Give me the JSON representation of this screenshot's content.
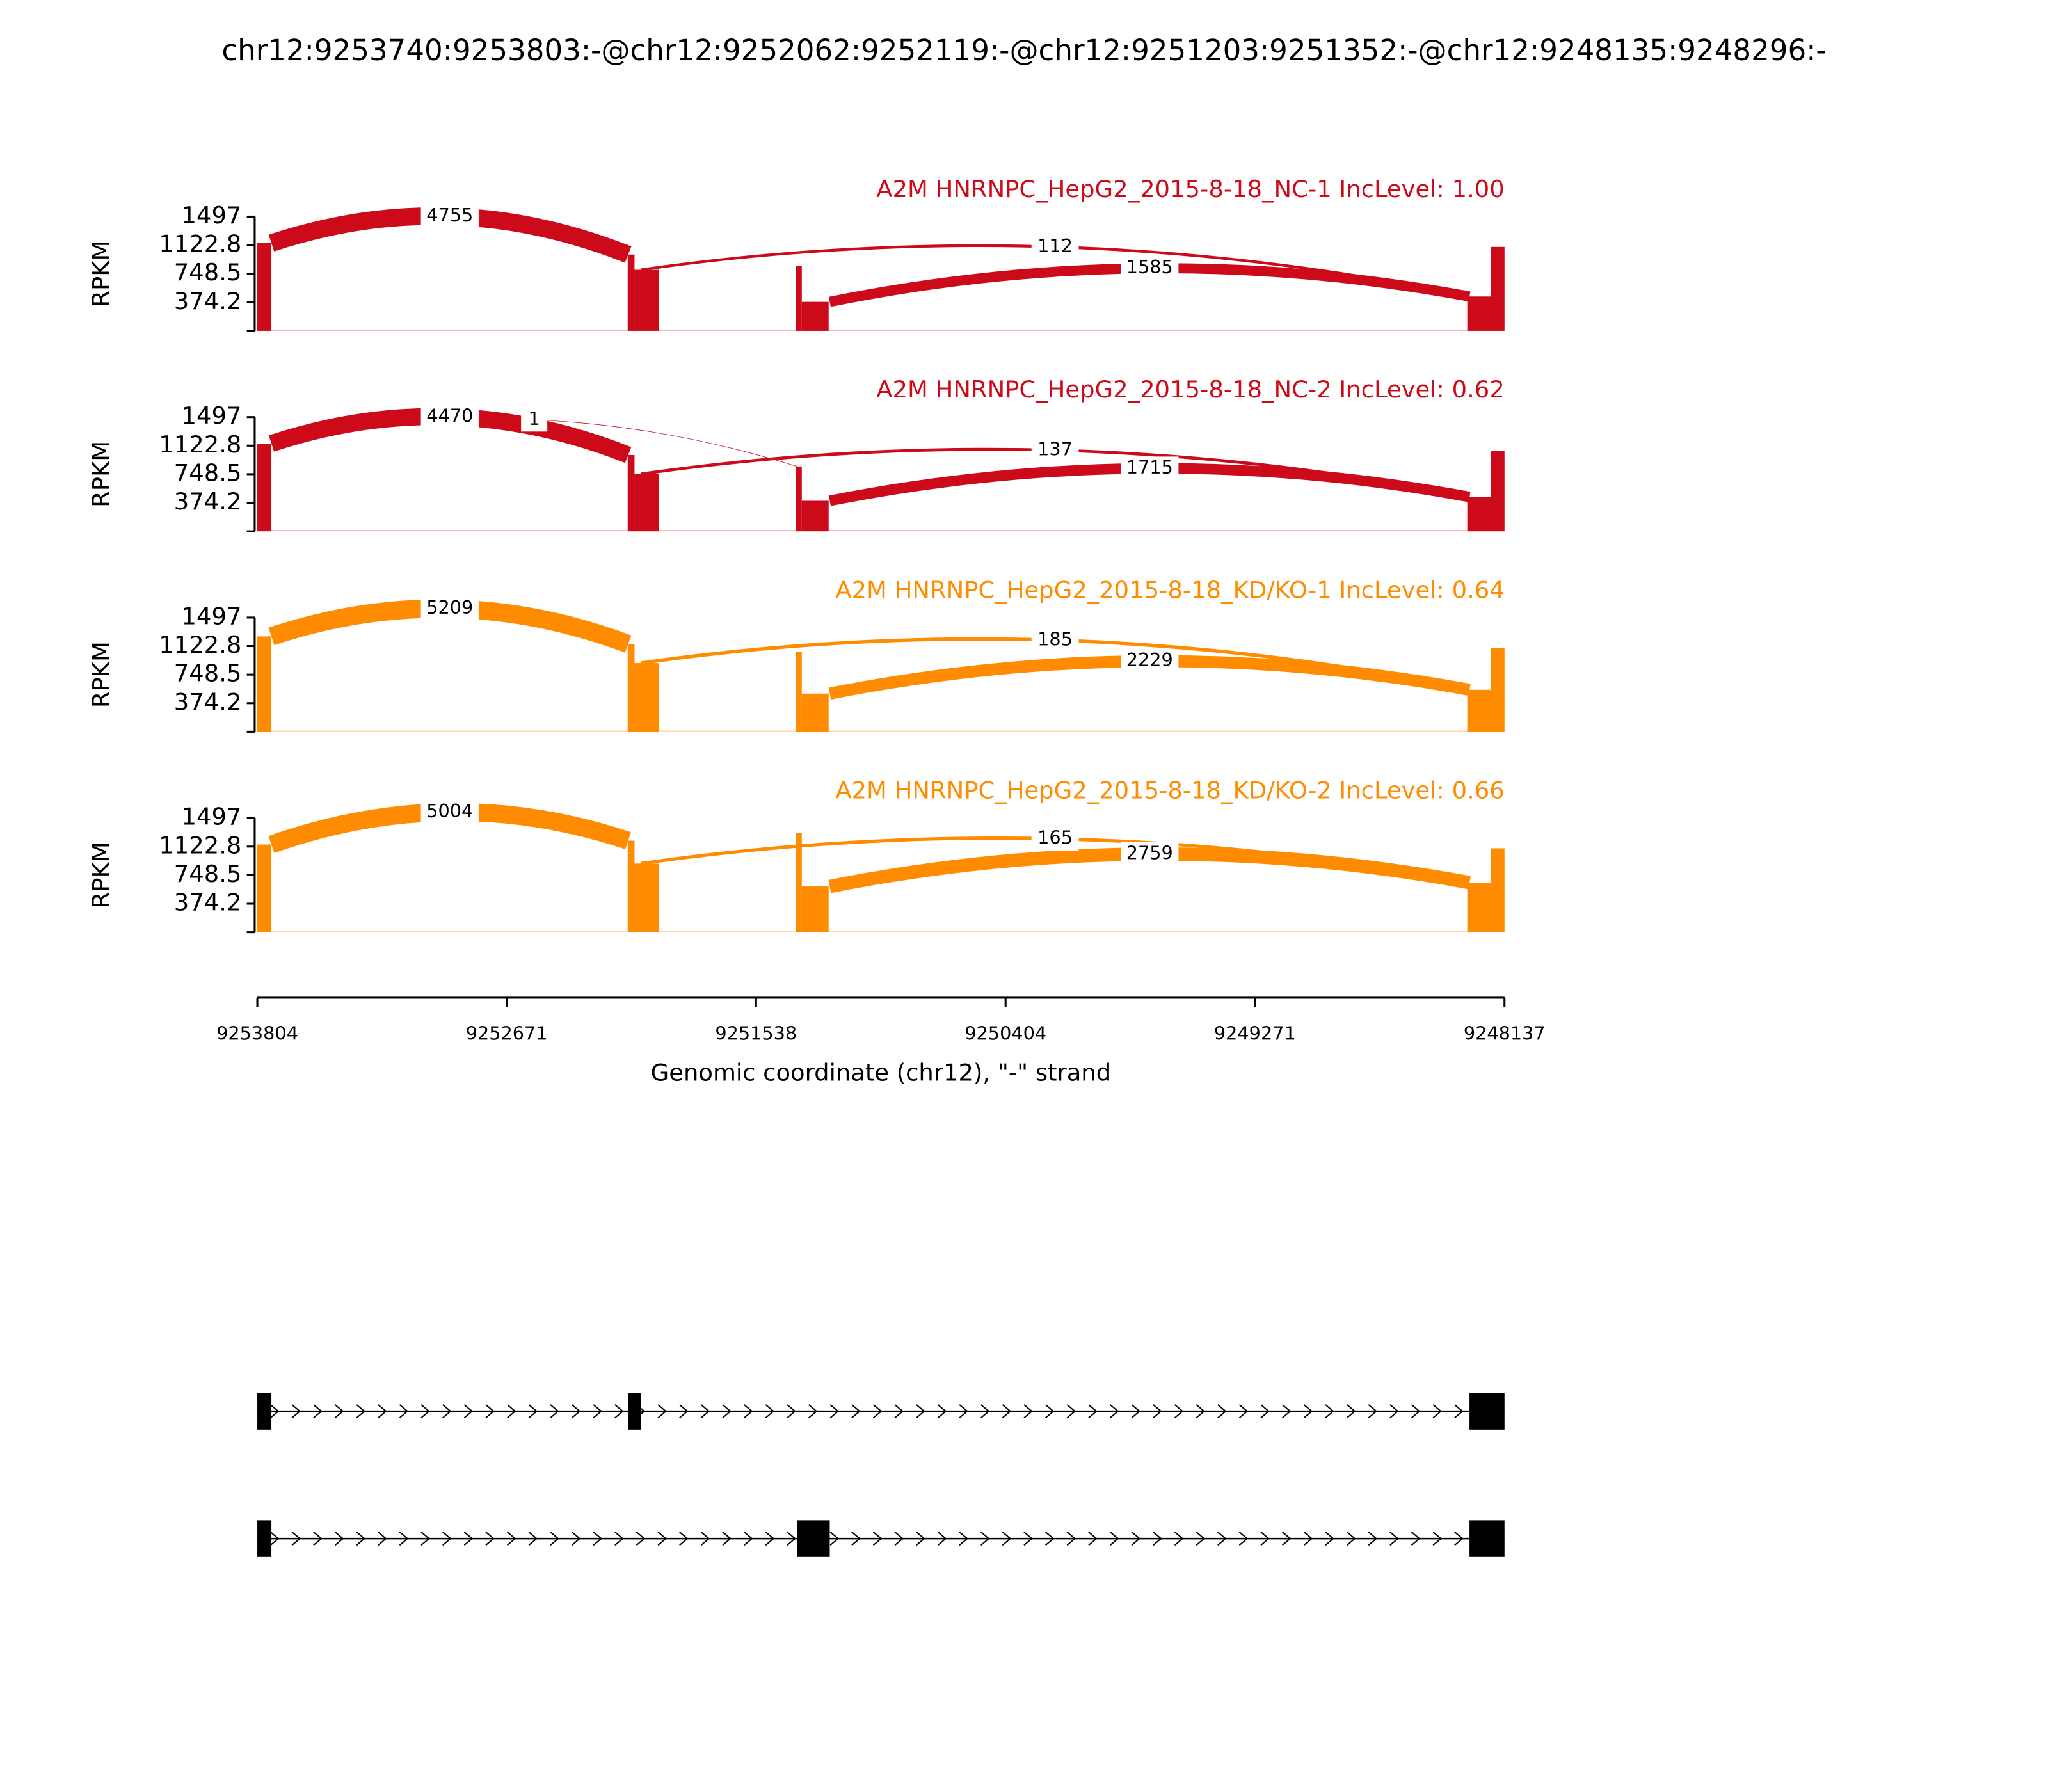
{
  "chart_data": {
    "type": "sashimi",
    "title": "chr12:9253740:9253803:-@chr12:9252062:9252119:-@chr12:9251203:9251352:-@chr12:9248135:9248296:-",
    "ylabel": "RPKM",
    "ylim": [
      0,
      1497
    ],
    "yticks": [
      374.2,
      748.5,
      1122.8,
      1497
    ],
    "xlim": [
      9253804,
      9248137
    ],
    "xticks": [
      9253804,
      9252671,
      9251538,
      9250404,
      9249271,
      9248137
    ],
    "xlabel": "Genomic coordinate (chr12), \"-\" strand",
    "panels": [
      {
        "name": "A2M HNRNPC_HepG2_2015-8-18_NC-1 IncLevel: 1.00",
        "color": "#cc0a1a",
        "coverage": [
          {
            "start": 9253804,
            "end": 9253740,
            "value": 1150
          },
          {
            "start": 9252121,
            "end": 9252090,
            "value": 1000
          },
          {
            "start": 9252090,
            "end": 9251980,
            "value": 800
          },
          {
            "start": 9251358,
            "end": 9251330,
            "value": 850
          },
          {
            "start": 9251330,
            "end": 9251208,
            "value": 380
          },
          {
            "start": 9248306,
            "end": 9248200,
            "value": 450
          },
          {
            "start": 9248200,
            "end": 9248137,
            "value": 1100
          }
        ],
        "junctions": [
          {
            "start": 9253740,
            "end": 9252119,
            "count": 4755
          },
          {
            "start": 9252062,
            "end": 9248296,
            "count": 112
          },
          {
            "start": 9251203,
            "end": 9248296,
            "count": 1585
          }
        ]
      },
      {
        "name": "A2M HNRNPC_HepG2_2015-8-18_NC-2 IncLevel: 0.62",
        "color": "#cc0a1a",
        "coverage": [
          {
            "start": 9253804,
            "end": 9253740,
            "value": 1150
          },
          {
            "start": 9252121,
            "end": 9252090,
            "value": 1000
          },
          {
            "start": 9252090,
            "end": 9251980,
            "value": 750
          },
          {
            "start": 9251358,
            "end": 9251330,
            "value": 850
          },
          {
            "start": 9251330,
            "end": 9251208,
            "value": 400
          },
          {
            "start": 9248306,
            "end": 9248200,
            "value": 450
          },
          {
            "start": 9248200,
            "end": 9248137,
            "value": 1050
          }
        ],
        "junctions": [
          {
            "start": 9253740,
            "end": 9252119,
            "count": 4470
          },
          {
            "start": 9253740,
            "end": 9251352,
            "count": 1
          },
          {
            "start": 9252062,
            "end": 9248296,
            "count": 137
          },
          {
            "start": 9251203,
            "end": 9248296,
            "count": 1715
          }
        ]
      },
      {
        "name": "A2M HNRNPC_HepG2_2015-8-18_KD/KO-1 IncLevel: 0.64",
        "color": "#ff8c00",
        "coverage": [
          {
            "start": 9253804,
            "end": 9253740,
            "value": 1250
          },
          {
            "start": 9252121,
            "end": 9252090,
            "value": 1150
          },
          {
            "start": 9252090,
            "end": 9251980,
            "value": 900
          },
          {
            "start": 9251358,
            "end": 9251330,
            "value": 1050
          },
          {
            "start": 9251330,
            "end": 9251208,
            "value": 500
          },
          {
            "start": 9248306,
            "end": 9248200,
            "value": 550
          },
          {
            "start": 9248200,
            "end": 9248137,
            "value": 1100
          }
        ],
        "junctions": [
          {
            "start": 9253740,
            "end": 9252119,
            "count": 5209
          },
          {
            "start": 9252062,
            "end": 9248296,
            "count": 185
          },
          {
            "start": 9251203,
            "end": 9248296,
            "count": 2229
          }
        ]
      },
      {
        "name": "A2M HNRNPC_HepG2_2015-8-18_KD/KO-2 IncLevel: 0.66",
        "color": "#ff8c00",
        "coverage": [
          {
            "start": 9253804,
            "end": 9253740,
            "value": 1150
          },
          {
            "start": 9252121,
            "end": 9252090,
            "value": 1200
          },
          {
            "start": 9252090,
            "end": 9251980,
            "value": 900
          },
          {
            "start": 9251358,
            "end": 9251330,
            "value": 1300
          },
          {
            "start": 9251330,
            "end": 9251208,
            "value": 600
          },
          {
            "start": 9248306,
            "end": 9248200,
            "value": 650
          },
          {
            "start": 9248200,
            "end": 9248137,
            "value": 1100
          }
        ],
        "junctions": [
          {
            "start": 9253740,
            "end": 9252119,
            "count": 5004
          },
          {
            "start": 9252062,
            "end": 9248296,
            "count": 165
          },
          {
            "start": 9251203,
            "end": 9248296,
            "count": 2759
          }
        ]
      }
    ],
    "isoforms": [
      [
        {
          "start": 9253804,
          "end": 9253740
        },
        {
          "start": 9252119,
          "end": 9252062
        },
        {
          "start": 9248296,
          "end": 9248137
        }
      ],
      [
        {
          "start": 9253804,
          "end": 9253740
        },
        {
          "start": 9251352,
          "end": 9251203
        },
        {
          "start": 9248296,
          "end": 9248137
        }
      ]
    ]
  }
}
